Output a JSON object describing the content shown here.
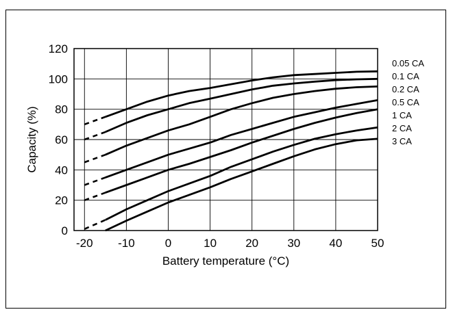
{
  "chart_data": {
    "type": "line",
    "title": "",
    "xlabel": "Battery temperature (°C)",
    "ylabel": "Capacity (%)",
    "xlim": [
      -20,
      50
    ],
    "ylim": [
      0,
      120
    ],
    "xticks": [
      "-20",
      "-10",
      "0",
      "10",
      "20",
      "30",
      "40",
      "50"
    ],
    "yticks": [
      "0",
      "20",
      "40",
      "60",
      "80",
      "100",
      "120"
    ],
    "grid": true,
    "legend_position": "right",
    "series": [
      {
        "name": "0.05 CA",
        "dashed": {
          "x": [
            -20,
            -15
          ],
          "y": [
            70,
            75
          ]
        },
        "x": [
          -15,
          -10,
          -5,
          0,
          5,
          10,
          15,
          20,
          25,
          30,
          35,
          40,
          45,
          50
        ],
        "y": [
          75,
          80,
          85,
          89,
          92,
          94,
          96.5,
          99,
          101,
          102.5,
          103.2,
          104,
          104.7,
          105
        ]
      },
      {
        "name": "0.1 CA",
        "dashed": {
          "x": [
            -20,
            -15
          ],
          "y": [
            60,
            65
          ]
        },
        "x": [
          -15,
          -10,
          -5,
          0,
          5,
          10,
          15,
          20,
          25,
          30,
          35,
          40,
          45,
          50
        ],
        "y": [
          65,
          71,
          76,
          80,
          84,
          87,
          90,
          93,
          95.5,
          97,
          98.2,
          99.2,
          99.7,
          100
        ]
      },
      {
        "name": "0.2 CA",
        "dashed": {
          "x": [
            -20,
            -15
          ],
          "y": [
            45,
            50
          ]
        },
        "x": [
          -15,
          -10,
          -5,
          0,
          5,
          10,
          15,
          20,
          25,
          30,
          35,
          40,
          45,
          50
        ],
        "y": [
          50,
          56,
          61,
          66,
          70,
          75,
          80,
          84,
          87.5,
          90,
          92,
          93.5,
          94.5,
          95
        ]
      },
      {
        "name": "0.5 CA",
        "dashed": {
          "x": [
            -20,
            -15
          ],
          "y": [
            30,
            35
          ]
        },
        "x": [
          -15,
          -10,
          -5,
          0,
          5,
          10,
          15,
          20,
          25,
          30,
          35,
          40,
          45,
          50
        ],
        "y": [
          35,
          40,
          45,
          50,
          54,
          58,
          63,
          67,
          71,
          75,
          78,
          81,
          83.5,
          86
        ]
      },
      {
        "name": "1 CA",
        "dashed": {
          "x": [
            -20,
            -15
          ],
          "y": [
            20,
            25
          ]
        },
        "x": [
          -15,
          -10,
          -5,
          0,
          5,
          10,
          15,
          20,
          25,
          30,
          35,
          40,
          45,
          50
        ],
        "y": [
          25,
          30,
          35,
          40,
          44,
          48.5,
          53,
          58,
          62.5,
          67,
          71,
          74.5,
          77.5,
          80
        ]
      },
      {
        "name": "2 CA",
        "dashed": {
          "x": [
            -20,
            -15
          ],
          "y": [
            1,
            7
          ]
        },
        "x": [
          -15,
          -10,
          -5,
          0,
          5,
          10,
          15,
          20,
          25,
          30,
          35,
          40,
          45,
          50
        ],
        "y": [
          7,
          14,
          20,
          26,
          31,
          36,
          42,
          47,
          52,
          56.5,
          60.5,
          63.5,
          66,
          68
        ]
      },
      {
        "name": "3 CA",
        "dashed": null,
        "x": [
          -15,
          -10,
          -5,
          0,
          5,
          10,
          15,
          20,
          25,
          30,
          35,
          40,
          45,
          50
        ],
        "y": [
          0,
          6.5,
          12.5,
          18.5,
          23.5,
          28.5,
          34,
          39,
          44,
          49,
          53.5,
          57,
          59.5,
          60.5
        ]
      }
    ]
  }
}
